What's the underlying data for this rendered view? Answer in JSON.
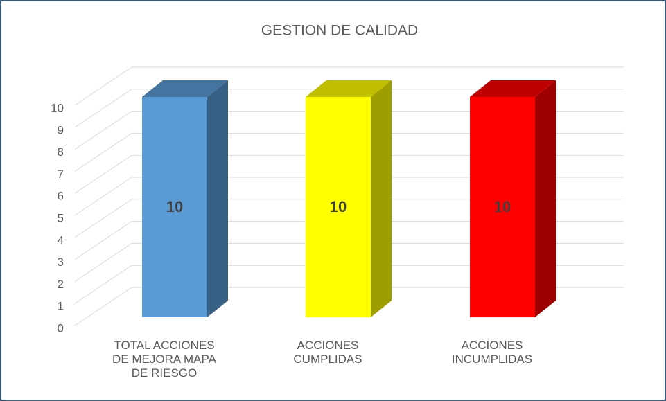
{
  "chart_data": {
    "type": "bar3d",
    "title": "GESTION DE CALIDAD",
    "categories": [
      "TOTAL ACCIONES DE MEJORA MAPA DE RIESGO",
      "ACCIONES CUMPLIDAS",
      "ACCIONES INCUMPLIDAS"
    ],
    "values": [
      10,
      10,
      10
    ],
    "colors": [
      "#5b9bd5",
      "#ffff00",
      "#ff0000"
    ],
    "ylim": [
      0,
      10
    ],
    "yticks": [
      0,
      1,
      2,
      3,
      4,
      5,
      6,
      7,
      8,
      9,
      10
    ],
    "grid": true
  }
}
